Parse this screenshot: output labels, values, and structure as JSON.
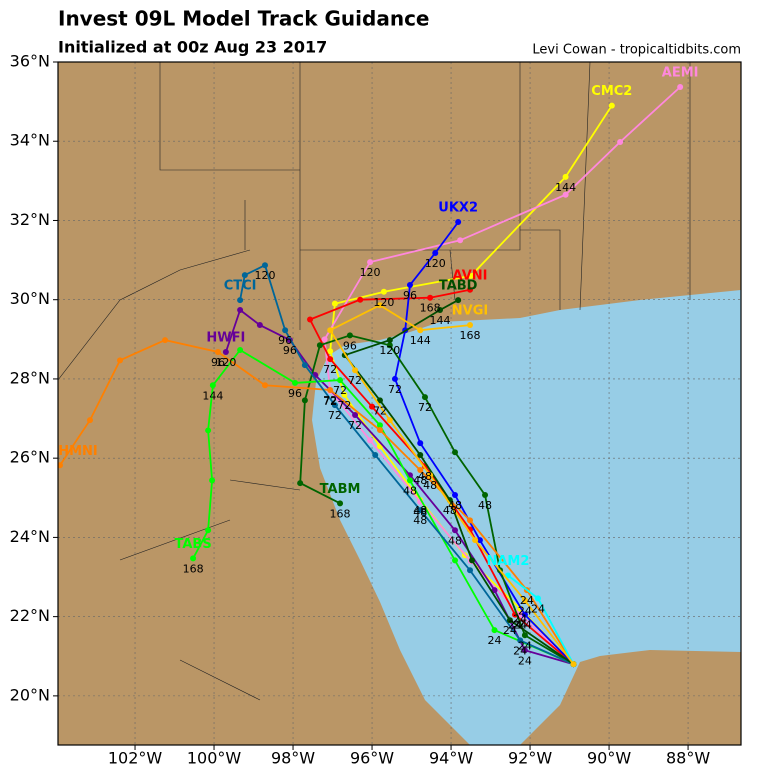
{
  "chart_data": {
    "type": "track_map",
    "title": "Invest 09L Model Track Guidance",
    "subtitle": "Initialized at 00z Aug 23 2017",
    "credit": "Levi Cowan - tropicaltidbits.com",
    "xlim": [
      -103.95,
      -86.66
    ],
    "ylim": [
      18.76,
      36
    ],
    "xticks": [
      {
        "value": -102,
        "label": "102°W"
      },
      {
        "value": -100,
        "label": "100°W"
      },
      {
        "value": -98,
        "label": "98°W"
      },
      {
        "value": -96,
        "label": "96°W"
      },
      {
        "value": -94,
        "label": "94°W"
      },
      {
        "value": -92,
        "label": "92°W"
      },
      {
        "value": -90,
        "label": "90°W"
      },
      {
        "value": -88,
        "label": "88°W"
      }
    ],
    "yticks": [
      {
        "value": 20,
        "label": "20°N"
      },
      {
        "value": 22,
        "label": "22°N"
      },
      {
        "value": 24,
        "label": "24°N"
      },
      {
        "value": 26,
        "label": "26°N"
      },
      {
        "value": 28,
        "label": "28°N"
      },
      {
        "value": 30,
        "label": "30°N"
      },
      {
        "value": 32,
        "label": "32°N"
      },
      {
        "value": 34,
        "label": "34°N"
      },
      {
        "value": 36,
        "label": "36°N"
      }
    ],
    "grid": true,
    "series": [
      {
        "name": "CMC2",
        "color": "#ffff00",
        "lon": [
          -90.9,
          -92.25,
          -93.65,
          -94.78,
          -95.8,
          -96.7,
          -97.06,
          -96.94,
          -95.7,
          -93.5,
          -91.1,
          -89.93
        ],
        "lat": [
          20.8,
          22.2,
          23.55,
          24.94,
          26.3,
          27.6,
          28.7,
          29.9,
          30.2,
          30.6,
          33.1,
          34.9
        ],
        "labels": [
          null,
          24,
          null,
          48,
          null,
          72,
          null,
          null,
          120,
          null,
          144,
          null
        ]
      },
      {
        "name": "AEMI",
        "color": "#ff88dd",
        "lon": [
          -90.9,
          -92.25,
          -93.5,
          -94.78,
          -96.05,
          -97.06,
          -97.2,
          -96.05,
          -93.77,
          -91.1,
          -89.72,
          -88.2
        ],
        "lat": [
          20.8,
          22.05,
          23.4,
          24.9,
          26.45,
          27.7,
          29.0,
          30.95,
          31.5,
          32.65,
          33.98,
          35.37
        ],
        "labels": [
          null,
          24,
          null,
          48,
          null,
          72,
          null,
          120,
          null,
          null,
          null,
          null
        ]
      },
      {
        "name": "AVNI",
        "color": "#ff0000",
        "lon": [
          -90.9,
          -92.38,
          -93.52,
          -94.66,
          -96.0,
          -97.06,
          -97.57,
          -96.3,
          -94.53,
          -93.52
        ],
        "lat": [
          20.8,
          22.05,
          24.2,
          25.8,
          27.3,
          28.5,
          29.5,
          30.0,
          30.05,
          30.25
        ],
        "labels": [
          null,
          24,
          null,
          48,
          null,
          72,
          null,
          null,
          168,
          null
        ]
      },
      {
        "name": "UKX2",
        "color": "#0000ff",
        "lon": [
          -90.9,
          -92.13,
          -93.27,
          -93.9,
          -94.78,
          -95.42,
          -95.16,
          -95.04,
          -94.4,
          -93.82
        ],
        "lat": [
          20.8,
          22.05,
          23.93,
          25.07,
          26.38,
          28.0,
          29.23,
          30.37,
          31.18,
          31.96
        ],
        "labels": [
          null,
          24,
          null,
          48,
          null,
          72,
          null,
          96,
          120,
          null
        ]
      },
      {
        "name": "HWFI",
        "color": "#660099",
        "lon": [
          -90.9,
          -92.13,
          -92.9,
          -93.9,
          -95.04,
          -96.43,
          -97.44,
          -98.08,
          -98.84,
          -99.34,
          -99.7
        ],
        "lat": [
          20.8,
          21.15,
          22.67,
          24.18,
          25.57,
          27.09,
          28.1,
          28.98,
          29.36,
          29.74,
          28.68
        ],
        "labels": [
          null,
          24,
          null,
          48,
          null,
          72,
          null,
          96,
          null,
          null,
          120
        ]
      },
      {
        "name": "TABM",
        "color": "#006400",
        "lon": [
          -90.9,
          -92.13,
          -92.76,
          -93.14,
          -93.9,
          -94.66,
          -95.55,
          -96.56,
          -97.32,
          -97.7,
          -97.82,
          -96.81
        ],
        "lat": [
          20.8,
          21.53,
          23.17,
          25.07,
          26.15,
          27.54,
          28.85,
          29.1,
          28.85,
          27.46,
          25.37,
          24.86
        ],
        "labels": [
          null,
          24,
          null,
          48,
          null,
          72,
          null,
          96,
          null,
          null,
          null,
          168
        ]
      },
      {
        "name": "TABS",
        "color": "#00ff00",
        "lon": [
          -90.9,
          -92.9,
          -93.9,
          -95.04,
          -95.8,
          -96.81,
          -97.95,
          -99.34,
          -100.03,
          -100.15,
          -100.05,
          -100.15,
          -100.53
        ],
        "lat": [
          20.8,
          21.66,
          23.42,
          25.44,
          26.83,
          27.97,
          27.9,
          28.73,
          27.84,
          26.7,
          25.44,
          24.18,
          23.47
        ],
        "labels": [
          null,
          24,
          null,
          48,
          null,
          72,
          96,
          null,
          144,
          null,
          null,
          null,
          168
        ]
      },
      {
        "name": "HMNI",
        "color": "#ff8000",
        "lon": [
          -90.9,
          -92.08,
          -93.52,
          -94.78,
          -95.8,
          -97.06,
          -98.71,
          -99.9,
          -101.24,
          -102.38,
          -103.14,
          -103.9
        ],
        "lat": [
          20.8,
          22.67,
          24.43,
          25.7,
          26.71,
          27.72,
          27.84,
          28.68,
          28.98,
          28.47,
          26.96,
          25.82
        ],
        "labels": [
          null,
          24,
          null,
          48,
          null,
          72,
          null,
          96,
          null,
          null,
          null,
          null
        ]
      },
      {
        "name": "CTCI",
        "color": "#006699",
        "lon": [
          -90.9,
          -92.25,
          -93.52,
          -94.78,
          -95.92,
          -96.94,
          -97.7,
          -98.2,
          -98.71,
          -99.22,
          -99.34
        ],
        "lat": [
          20.8,
          21.4,
          23.17,
          24.69,
          26.08,
          27.34,
          28.35,
          29.23,
          30.87,
          30.62,
          29.99
        ],
        "labels": [
          null,
          24,
          null,
          48,
          null,
          72,
          null,
          96,
          120,
          null,
          null
        ]
      },
      {
        "name": "TABD",
        "color": "#004d00",
        "lon": [
          -90.9,
          -92.51,
          -93.47,
          -94.03,
          -94.78,
          -95.8,
          -96.69,
          -95.55,
          -94.28,
          -93.82
        ],
        "lat": [
          20.8,
          21.91,
          23.42,
          24.94,
          26.08,
          27.46,
          28.6,
          28.98,
          29.74,
          29.99
        ],
        "labels": [
          null,
          24,
          null,
          48,
          null,
          72,
          null,
          120,
          144,
          null
        ]
      },
      {
        "name": "NAM2",
        "color": "#00ffff",
        "lon": [
          -90.9,
          -91.8,
          -92.56
        ],
        "lat": [
          20.8,
          22.46,
          23.04
        ],
        "labels": [
          null,
          24,
          null
        ]
      },
      {
        "name": "NVGI",
        "color": "#ffc000",
        "lon": [
          -90.9,
          -92.13,
          -93.39,
          -94.53,
          -95.55,
          -96.43,
          -97.06,
          -95.8,
          -94.78,
          -93.52
        ],
        "lat": [
          20.8,
          22.41,
          23.93,
          25.57,
          26.96,
          28.22,
          29.23,
          29.86,
          29.23,
          29.36
        ],
        "labels": [
          null,
          24,
          null,
          48,
          null,
          72,
          null,
          null,
          144,
          168
        ]
      }
    ]
  }
}
